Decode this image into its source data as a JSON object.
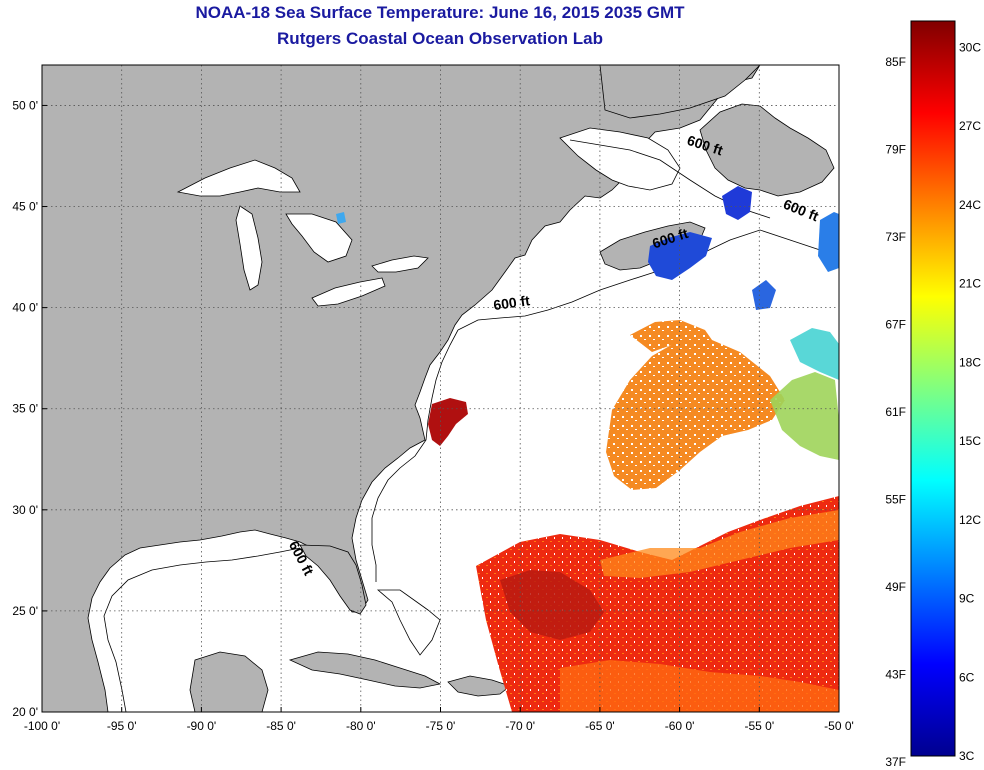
{
  "title": "NOAA-18 Sea Surface Temperature:  June 16, 2015 2035 GMT",
  "subtitle": "Rutgers Coastal Ocean Observation Lab",
  "map": {
    "lon_range": [
      -100,
      -50
    ],
    "lat_range": [
      20,
      52
    ],
    "x_ticks": [
      "-100 0'",
      "-95 0'",
      "-90 0'",
      "-85 0'",
      "-80 0'",
      "-75 0'",
      "-70 0'",
      "-65 0'",
      "-60 0'",
      "-55 0'",
      "-50 0'"
    ],
    "x_tick_values": [
      -100,
      -95,
      -90,
      -85,
      -80,
      -75,
      -70,
      -65,
      -60,
      -55,
      -50
    ],
    "y_ticks": [
      "50 0'",
      "45 0'",
      "40 0'",
      "35 0'",
      "30 0'",
      "25 0'",
      "20 0'"
    ],
    "y_tick_values": [
      50,
      45,
      40,
      35,
      30,
      25,
      20
    ],
    "grid": true,
    "land_color": "#b3b3b3",
    "ocean_color": "#ffffff",
    "contour_labels": [
      {
        "text": "600 ft",
        "lon": -58.5,
        "lat": 47.8,
        "angle": 18
      },
      {
        "text": "600 ft",
        "lon": -52.5,
        "lat": 44.6,
        "angle": 22
      },
      {
        "text": "600 ft",
        "lon": -60.5,
        "lat": 43.2,
        "angle": -18
      },
      {
        "text": "600 ft",
        "lon": -70.5,
        "lat": 40.0,
        "angle": -8
      },
      {
        "text": "600 ft",
        "lon": -84.0,
        "lat": 27.5,
        "angle": 62
      }
    ]
  },
  "colorbar": {
    "f_labels": [
      "85F",
      "79F",
      "73F",
      "67F",
      "61F",
      "55F",
      "49F",
      "43F",
      "37F"
    ],
    "c_labels": [
      "30C",
      "27C",
      "24C",
      "21C",
      "18C",
      "15C",
      "12C",
      "9C",
      "6C",
      "3C"
    ],
    "range_c": [
      3,
      31
    ],
    "colors": [
      "#00008f",
      "#0000ff",
      "#0080ff",
      "#00ffff",
      "#80ff80",
      "#ffff00",
      "#ff8000",
      "#ff0000",
      "#800000"
    ]
  }
}
